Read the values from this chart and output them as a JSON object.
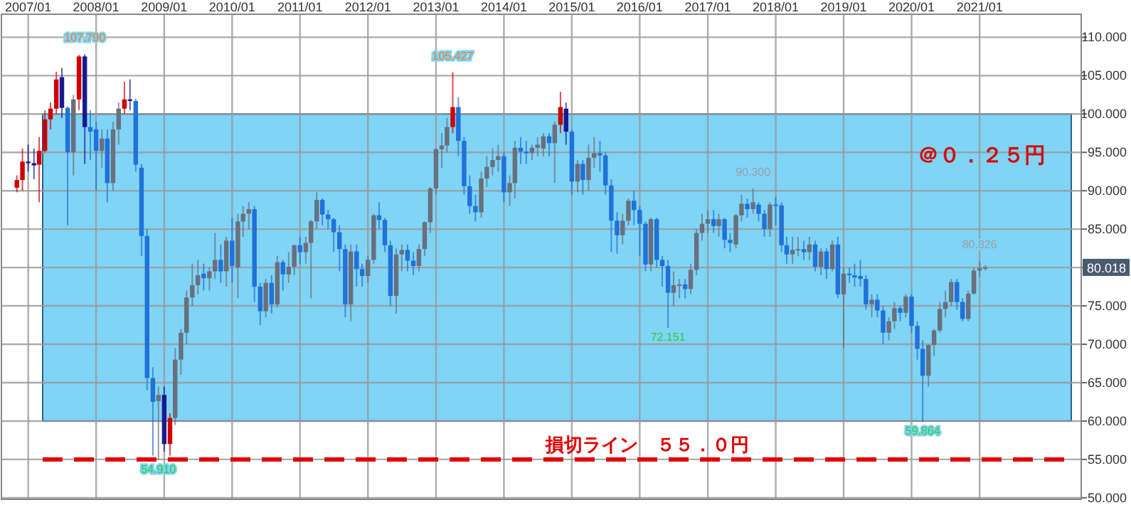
{
  "chart_data": {
    "type": "candlestick",
    "x": [
      "2006-11",
      "2006-12",
      "2007-01",
      "2007-02",
      "2007-03",
      "2007-04",
      "2007-05",
      "2007-06",
      "2007-07",
      "2007-08",
      "2007-09",
      "2007-10",
      "2007-11",
      "2007-12",
      "2008-01",
      "2008-02",
      "2008-03",
      "2008-04",
      "2008-05",
      "2008-06",
      "2008-07",
      "2008-08",
      "2008-09",
      "2008-10",
      "2008-11",
      "2008-12",
      "2009-01",
      "2009-02",
      "2009-03",
      "2009-04",
      "2009-05",
      "2009-06",
      "2009-07",
      "2009-08",
      "2009-09",
      "2009-10",
      "2009-11",
      "2009-12",
      "2010-01",
      "2010-02",
      "2010-03",
      "2010-04",
      "2010-05",
      "2010-06",
      "2010-07",
      "2010-08",
      "2010-09",
      "2010-10",
      "2010-11",
      "2010-12",
      "2011-01",
      "2011-02",
      "2011-03",
      "2011-04",
      "2011-05",
      "2011-06",
      "2011-07",
      "2011-08",
      "2011-09",
      "2011-10",
      "2011-11",
      "2011-12",
      "2012-01",
      "2012-02",
      "2012-03",
      "2012-04",
      "2012-05",
      "2012-06",
      "2012-07",
      "2012-08",
      "2012-09",
      "2012-10",
      "2012-11",
      "2012-12",
      "2013-01",
      "2013-02",
      "2013-03",
      "2013-04",
      "2013-05",
      "2013-06",
      "2013-07",
      "2013-08",
      "2013-09",
      "2013-10",
      "2013-11",
      "2013-12",
      "2014-01",
      "2014-02",
      "2014-03",
      "2014-04",
      "2014-05",
      "2014-06",
      "2014-07",
      "2014-08",
      "2014-09",
      "2014-10",
      "2014-11",
      "2014-12",
      "2015-01",
      "2015-02",
      "2015-03",
      "2015-04",
      "2015-05",
      "2015-06",
      "2015-07",
      "2015-08",
      "2015-09",
      "2015-10",
      "2015-11",
      "2015-12",
      "2016-01",
      "2016-02",
      "2016-03",
      "2016-04",
      "2016-05",
      "2016-06",
      "2016-07",
      "2016-08",
      "2016-09",
      "2016-10",
      "2016-11",
      "2016-12",
      "2017-01",
      "2017-02",
      "2017-03",
      "2017-04",
      "2017-05",
      "2017-06",
      "2017-07",
      "2017-08",
      "2017-09",
      "2017-10",
      "2017-11",
      "2017-12",
      "2018-01",
      "2018-02",
      "2018-03",
      "2018-04",
      "2018-05",
      "2018-06",
      "2018-07",
      "2018-08",
      "2018-09",
      "2018-10",
      "2018-11",
      "2018-12",
      "2019-01",
      "2019-02",
      "2019-03",
      "2019-04",
      "2019-05",
      "2019-06",
      "2019-07",
      "2019-08",
      "2019-09",
      "2019-10",
      "2019-11",
      "2019-12",
      "2020-01",
      "2020-02",
      "2020-03",
      "2020-04",
      "2020-05",
      "2020-06",
      "2020-07",
      "2020-08",
      "2020-09",
      "2020-10",
      "2020-11",
      "2020-12",
      "2021-01",
      "2021-02"
    ],
    "ohlc": [
      [
        90.4,
        92,
        89.8,
        91.4
      ],
      [
        91.4,
        95.5,
        90,
        93.8
      ],
      [
        93.8,
        96,
        92.5,
        93.6
      ],
      [
        93.6,
        95.5,
        91.5,
        93.3
      ],
      [
        93.4,
        97,
        88.5,
        95.2
      ],
      [
        95.2,
        100.5,
        95,
        99.3
      ],
      [
        99.3,
        101.5,
        98,
        100.7
      ],
      [
        100.7,
        105.5,
        100,
        104.5
      ],
      [
        104.8,
        106,
        99.5,
        100.8
      ],
      [
        100.8,
        101,
        85.5,
        95
      ],
      [
        95,
        102.5,
        92,
        101.9
      ],
      [
        101.9,
        107.7,
        100.5,
        107.5
      ],
      [
        107.5,
        107.79,
        93.5,
        98.3
      ],
      [
        98.3,
        100.5,
        94,
        97.7
      ],
      [
        98,
        99,
        90,
        95.2
      ],
      [
        95.2,
        98,
        93,
        96.8
      ],
      [
        96.8,
        98,
        88.5,
        91
      ],
      [
        91,
        99,
        90,
        98
      ],
      [
        98,
        101.5,
        96,
        100.7
      ],
      [
        100.7,
        104.2,
        100,
        101.9
      ],
      [
        101.9,
        104.5,
        100.5,
        101.7
      ],
      [
        101.7,
        102,
        92.5,
        93.4
      ],
      [
        93,
        93.5,
        81.5,
        84.1
      ],
      [
        84.1,
        85,
        64,
        65.6
      ],
      [
        65.6,
        67,
        55.5,
        62.5
      ],
      [
        62.6,
        64.5,
        54.91,
        63.4
      ],
      [
        63.4,
        64.5,
        56,
        57
      ],
      [
        57,
        61,
        55.5,
        60.4
      ],
      [
        60.4,
        69.5,
        59.5,
        68
      ],
      [
        68,
        72,
        66,
        71.5
      ],
      [
        71.5,
        77,
        70,
        76.1
      ],
      [
        76.1,
        80.5,
        75,
        77.7
      ],
      [
        77.7,
        81,
        76.5,
        79
      ],
      [
        79.2,
        80.5,
        77,
        78.6
      ],
      [
        78.6,
        80,
        77,
        79.5
      ],
      [
        79.5,
        84.5,
        78.5,
        81
      ],
      [
        81,
        83,
        78,
        79.5
      ],
      [
        79.5,
        84,
        77.5,
        83.5
      ],
      [
        83.5,
        86.5,
        78,
        80.2
      ],
      [
        80,
        87,
        76,
        86
      ],
      [
        86,
        88,
        84,
        87
      ],
      [
        87,
        88.5,
        85,
        87.6
      ],
      [
        87.6,
        88,
        75.5,
        77.5
      ],
      [
        77.5,
        78,
        72.5,
        74.3
      ],
      [
        74.3,
        78.5,
        73.5,
        78
      ],
      [
        78,
        79,
        74,
        75.2
      ],
      [
        75.2,
        81.5,
        74.8,
        80.7
      ],
      [
        80.7,
        81,
        77,
        79.1
      ],
      [
        79.1,
        82,
        78,
        80.1
      ],
      [
        80.1,
        83,
        79,
        82.9
      ],
      [
        82.9,
        84,
        80.5,
        82
      ],
      [
        82,
        84,
        80.5,
        83.2
      ],
      [
        83.2,
        86.2,
        76,
        86
      ],
      [
        86,
        89.8,
        85,
        88.8
      ],
      [
        88.8,
        89,
        85.5,
        86.9
      ],
      [
        86.9,
        87.5,
        85,
        86.3
      ],
      [
        86.3,
        86.5,
        82,
        84.6
      ],
      [
        84.6,
        85.5,
        79.5,
        82.4
      ],
      [
        82.4,
        83,
        73.5,
        75.2
      ],
      [
        75.2,
        83,
        73,
        82.1
      ],
      [
        82.1,
        83,
        77.5,
        79.8
      ],
      [
        79.8,
        80.5,
        77.5,
        78.9
      ],
      [
        78.9,
        81.5,
        78,
        81
      ],
      [
        81,
        87,
        80.5,
        86.8
      ],
      [
        86.8,
        88.5,
        85,
        86.2
      ],
      [
        86.2,
        86.5,
        82,
        82.9
      ],
      [
        82.9,
        83.5,
        75,
        76.3
      ],
      [
        76.3,
        82.5,
        74,
        81.7
      ],
      [
        81.7,
        83,
        79.5,
        82.3
      ],
      [
        82.3,
        83,
        79.5,
        80.9
      ],
      [
        80.9,
        82,
        79,
        80.2
      ],
      [
        80.2,
        83,
        79.5,
        82.4
      ],
      [
        82.4,
        86,
        81.5,
        85.9
      ],
      [
        85.9,
        90.5,
        84.5,
        90.3
      ],
      [
        90.3,
        95.6,
        89.5,
        95.4
      ],
      [
        95.4,
        97.5,
        93,
        95.9
      ],
      [
        95.9,
        99.5,
        95,
        98.3
      ],
      [
        98.3,
        105.427,
        97.5,
        100.9
      ],
      [
        100.9,
        102.2,
        94.5,
        96.5
      ],
      [
        96.5,
        97,
        89.5,
        90.6
      ],
      [
        90.6,
        92,
        87,
        88
      ],
      [
        88,
        89.5,
        86,
        87.2
      ],
      [
        87.2,
        92.5,
        86.5,
        91.6
      ],
      [
        91.6,
        94.5,
        90.5,
        93.1
      ],
      [
        93.1,
        95.5,
        92,
        94
      ],
      [
        94,
        96,
        92.5,
        94.5
      ],
      [
        94.5,
        95,
        88.5,
        89.8
      ],
      [
        89.8,
        92,
        88,
        91
      ],
      [
        91,
        96.5,
        89,
        95.6
      ],
      [
        95.6,
        97,
        93.5,
        95.1
      ],
      [
        95.1,
        96.5,
        93.5,
        94.9
      ],
      [
        94.9,
        96,
        94,
        95.6
      ],
      [
        95.6,
        97,
        94.5,
        96
      ],
      [
        95.5,
        97.5,
        94.5,
        97.1
      ],
      [
        97.1,
        97.5,
        94.5,
        96.2
      ],
      [
        96.2,
        99,
        91,
        98.6
      ],
      [
        98.6,
        102.9,
        97.5,
        100.9
      ],
      [
        100.7,
        101.5,
        96,
        97.7
      ],
      [
        97.7,
        98,
        89.5,
        91.2
      ],
      [
        91.2,
        94,
        89.8,
        93.5
      ],
      [
        93.5,
        94,
        89.5,
        91.4
      ],
      [
        91.4,
        96,
        90,
        94.3
      ],
      [
        94.3,
        97,
        93,
        94.9
      ],
      [
        94.9,
        96.5,
        92.5,
        94.6
      ],
      [
        94.6,
        95,
        89.5,
        90.7
      ],
      [
        90.7,
        91.5,
        82,
        86.1
      ],
      [
        86.1,
        87.2,
        81.8,
        84.2
      ],
      [
        84.2,
        87,
        83,
        86.1
      ],
      [
        86.1,
        89,
        85.5,
        88.7
      ],
      [
        88.7,
        90,
        85.5,
        87.5
      ],
      [
        87.5,
        88,
        81.5,
        85.7
      ],
      [
        85.7,
        86,
        79.5,
        80.4
      ],
      [
        80.4,
        86.5,
        79.5,
        86.3
      ],
      [
        86.3,
        86.5,
        80,
        81
      ],
      [
        81,
        81.5,
        77.5,
        80.2
      ],
      [
        80.2,
        81,
        72.151,
        76.7
      ],
      [
        76.7,
        79.5,
        75,
        77.7
      ],
      [
        77.7,
        78.5,
        76,
        77.8
      ],
      [
        77.8,
        78.5,
        76,
        77.2
      ],
      [
        77.2,
        80.5,
        76.5,
        79.7
      ],
      [
        79.7,
        85,
        79,
        84.5
      ],
      [
        84.5,
        87,
        83.5,
        85.7
      ],
      [
        85.7,
        87.5,
        84.5,
        86.3
      ],
      [
        86.3,
        87.5,
        84.5,
        85.4
      ],
      [
        85.4,
        87,
        84,
        86.3
      ],
      [
        86.3,
        86.5,
        82.5,
        83.6
      ],
      [
        83.6,
        84.5,
        82,
        83.2
      ],
      [
        83,
        87,
        82.5,
        86.8
      ],
      [
        86.8,
        89.5,
        86,
        88.3
      ],
      [
        88.3,
        89,
        86.5,
        87.6
      ],
      [
        87.6,
        90.3,
        87,
        88.5
      ],
      [
        88.2,
        88.5,
        86,
        87
      ],
      [
        87,
        87.5,
        84,
        85
      ],
      [
        85,
        88.5,
        84,
        88.2
      ],
      [
        88.2,
        89.2,
        85.5,
        88.1
      ],
      [
        88.1,
        88.5,
        82,
        82.9
      ],
      [
        82.9,
        84,
        80.5,
        81.7
      ],
      [
        81.7,
        84,
        80.5,
        82.3
      ],
      [
        82.3,
        84,
        81.5,
        82.4
      ],
      [
        82.4,
        83.5,
        81,
        82
      ],
      [
        82,
        84,
        81,
        83
      ],
      [
        83,
        83.5,
        79.5,
        80.1
      ],
      [
        80.1,
        82.5,
        79,
        82.1
      ],
      [
        82.1,
        82.5,
        78.5,
        79.8
      ],
      [
        79.8,
        83.5,
        79.5,
        83
      ],
      [
        83,
        84,
        76,
        76.5
      ],
      [
        76.5,
        80,
        69.5,
        79.2
      ],
      [
        79.2,
        80,
        78,
        79
      ],
      [
        79,
        80.5,
        77.5,
        78.7
      ],
      [
        78.9,
        81,
        77.5,
        78.5
      ],
      [
        78.5,
        79,
        74.5,
        75.2
      ],
      [
        75.2,
        76.5,
        73.5,
        75.8
      ],
      [
        75.8,
        76.5,
        73.5,
        74.4
      ],
      [
        74.4,
        75,
        70,
        71.5
      ],
      [
        71.5,
        73.5,
        70.5,
        73
      ],
      [
        73,
        75.5,
        72,
        74.7
      ],
      [
        74.7,
        75,
        73,
        74.1
      ],
      [
        74.1,
        76.5,
        73.5,
        76.2
      ],
      [
        76.2,
        76.5,
        71.5,
        72.4
      ],
      [
        72.4,
        73,
        68,
        69.4
      ],
      [
        69.4,
        70.5,
        59.864,
        65.9
      ],
      [
        65.9,
        70,
        64.5,
        69.9
      ],
      [
        69.9,
        72,
        68.5,
        71.8
      ],
      [
        71.8,
        75.5,
        71.5,
        74.6
      ],
      [
        74.6,
        77,
        73.5,
        75.5
      ],
      [
        75.5,
        78.5,
        75,
        78.1
      ],
      [
        78.1,
        78.5,
        74.5,
        75.5
      ],
      [
        75.5,
        76,
        73,
        73.3
      ],
      [
        73.3,
        77,
        73,
        76.6
      ],
      [
        76.6,
        80,
        76.5,
        79.6
      ],
      [
        79.6,
        80.826,
        78.8,
        79.9
      ],
      [
        79.9,
        80.3,
        79.6,
        80.018
      ]
    ],
    "colors": [
      "#d00000",
      "#d00000",
      "#1a1a90",
      "#1a1a90",
      "#d00000",
      "#d00000",
      "#d00000",
      "#d00000",
      "#1a1a90",
      "#2072d8",
      "#68707e",
      "#d00000",
      "#1a1a90",
      "#2072d8",
      "#2072d8",
      "#68707e",
      "#2072d8",
      "#68707e",
      "#68707e",
      "#d00000",
      "#1a1a90",
      "#2072d8",
      "#2072d8",
      "#2072d8",
      "#2072d8",
      "#68707e",
      "#1a1a90",
      "#d00000",
      "#68707e",
      "#68707e",
      "#68707e",
      "#68707e",
      "#68707e",
      "#2072d8",
      "#68707e",
      "#68707e",
      "#2072d8",
      "#68707e",
      "#2072d8",
      "#68707e",
      "#68707e",
      "#68707e",
      "#2072d8",
      "#2072d8",
      "#68707e",
      "#2072d8",
      "#68707e",
      "#2072d8",
      "#68707e",
      "#68707e",
      "#2072d8",
      "#68707e",
      "#68707e",
      "#68707e",
      "#2072d8",
      "#2072d8",
      "#2072d8",
      "#2072d8",
      "#2072d8",
      "#68707e",
      "#2072d8",
      "#2072d8",
      "#68707e",
      "#68707e",
      "#2072d8",
      "#2072d8",
      "#2072d8",
      "#68707e",
      "#68707e",
      "#2072d8",
      "#2072d8",
      "#68707e",
      "#68707e",
      "#68707e",
      "#68707e",
      "#68707e",
      "#68707e",
      "#d00000",
      "#2072d8",
      "#2072d8",
      "#2072d8",
      "#2072d8",
      "#68707e",
      "#68707e",
      "#68707e",
      "#68707e",
      "#2072d8",
      "#68707e",
      "#68707e",
      "#2072d8",
      "#2072d8",
      "#68707e",
      "#68707e",
      "#68707e",
      "#2072d8",
      "#68707e",
      "#d00000",
      "#1a1a90",
      "#2072d8",
      "#68707e",
      "#2072d8",
      "#68707e",
      "#68707e",
      "#2072d8",
      "#2072d8",
      "#2072d8",
      "#2072d8",
      "#68707e",
      "#68707e",
      "#2072d8",
      "#2072d8",
      "#2072d8",
      "#68707e",
      "#2072d8",
      "#2072d8",
      "#2072d8",
      "#68707e",
      "#68707e",
      "#2072d8",
      "#68707e",
      "#68707e",
      "#68707e",
      "#68707e",
      "#2072d8",
      "#68707e",
      "#2072d8",
      "#2072d8",
      "#68707e",
      "#68707e",
      "#2072d8",
      "#68707e",
      "#2072d8",
      "#2072d8",
      "#68707e",
      "#2072d8",
      "#2072d8",
      "#2072d8",
      "#68707e",
      "#68707e",
      "#2072d8",
      "#68707e",
      "#2072d8",
      "#68707e",
      "#2072d8",
      "#68707e",
      "#2072d8",
      "#68707e",
      "#2072d8",
      "#2072d8",
      "#2072d8",
      "#2072d8",
      "#68707e",
      "#2072d8",
      "#2072d8",
      "#68707e",
      "#68707e",
      "#2072d8",
      "#68707e",
      "#2072d8",
      "#2072d8",
      "#2072d8",
      "#68707e",
      "#68707e",
      "#68707e",
      "#68707e",
      "#68707e",
      "#2072d8",
      "#2072d8",
      "#68707e",
      "#68707e",
      "#68707e",
      "#68707e"
    ],
    "xlim": [
      "2006-08-10",
      "2022-07-01"
    ],
    "xticks": [
      {
        "value": "2007-01-01",
        "label": "2007/01"
      },
      {
        "value": "2008-01-01",
        "label": "2008/01"
      },
      {
        "value": "2009-01-01",
        "label": "2009/01"
      },
      {
        "value": "2010-01-01",
        "label": "2010/01"
      },
      {
        "value": "2011-01-01",
        "label": "2011/01"
      },
      {
        "value": "2012-01-01",
        "label": "2012/01"
      },
      {
        "value": "2013-01-01",
        "label": "2013/01"
      },
      {
        "value": "2014-01-01",
        "label": "2014/01"
      },
      {
        "value": "2015-01-01",
        "label": "2015/01"
      },
      {
        "value": "2016-01-01",
        "label": "2016/01"
      },
      {
        "value": "2017-01-01",
        "label": "2017/01"
      },
      {
        "value": "2018-01-01",
        "label": "2018/01"
      },
      {
        "value": "2019-01-01",
        "label": "2019/01"
      },
      {
        "value": "2020-01-01",
        "label": "2020/01"
      },
      {
        "value": "2021-01-01",
        "label": "2021/01"
      }
    ],
    "ylim": [
      49.8,
      113
    ],
    "yticks": [
      {
        "value": 50,
        "label": "50.000"
      },
      {
        "value": 55,
        "label": "55.000"
      },
      {
        "value": 60,
        "label": "60.000"
      },
      {
        "value": 65,
        "label": "65.000"
      },
      {
        "value": 70,
        "label": "70.000"
      },
      {
        "value": 75,
        "label": "75.000"
      },
      {
        "value": 80,
        "label": null
      },
      {
        "value": 85,
        "label": "85.000"
      },
      {
        "value": 90,
        "label": "90.000"
      },
      {
        "value": 95,
        "label": "95.000"
      },
      {
        "value": 100,
        "label": "100.000"
      },
      {
        "value": 105,
        "label": "105.000"
      },
      {
        "value": 110,
        "label": "110.000"
      }
    ],
    "grid": true,
    "bands": [
      {
        "axis": "y",
        "from": 60,
        "to": 100,
        "label": "＠０．２５円",
        "color": "#80d4f6"
      }
    ],
    "ref_lines": [
      {
        "axis": "y",
        "value": 55,
        "label": "損切ライン　５５．０円",
        "color": "#e00000",
        "line_style": "dashed"
      }
    ],
    "annotations": [
      {
        "text": "107.790",
        "x": "2007-11",
        "y": 107.79
      },
      {
        "text": "54.910",
        "x": "2008-12",
        "y": 54.91
      },
      {
        "text": "105.427",
        "x": "2013-04",
        "y": 105.427
      },
      {
        "text": "72.151",
        "x": "2016-06",
        "y": 72.151
      },
      {
        "text": "90.300",
        "x": "2017-09",
        "y": 90.3
      },
      {
        "text": "59.864",
        "x": "2020-03",
        "y": 59.864
      },
      {
        "text": "80.826",
        "x": "2021-01",
        "y": 80.826
      },
      {
        "text": "80.018",
        "y": 80.018
      }
    ]
  }
}
